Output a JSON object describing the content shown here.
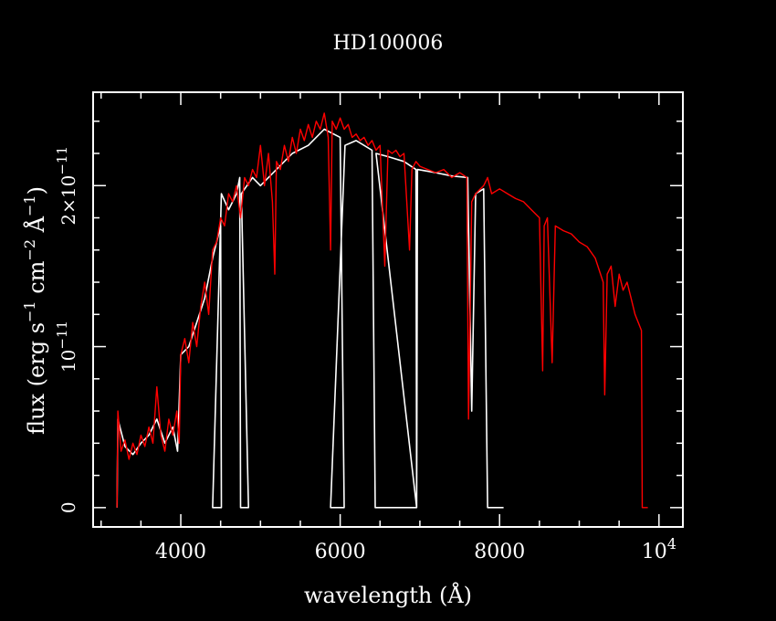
{
  "chart_data": {
    "type": "line",
    "title": "HD100006",
    "xlabel": "wavelength (Å)",
    "ylabel": {
      "prefix": "flux (erg s",
      "s_exp": "−1",
      "mid": " cm",
      "cm_exp": "−2",
      "ang": " Å",
      "ang_exp": "−1",
      "suffix": ")"
    },
    "xlim": [
      2900,
      10300
    ],
    "ylim": [
      -1.2e-12,
      2.58e-11
    ],
    "x_ticks": [
      {
        "value": 4000,
        "label": "4000"
      },
      {
        "value": 6000,
        "label": "6000"
      },
      {
        "value": 8000,
        "label": "8000"
      },
      {
        "value": 10000,
        "label": "10",
        "exp": "4"
      }
    ],
    "y_ticks": [
      {
        "value": 0,
        "label": "0"
      },
      {
        "value": 1e-11,
        "label": "10",
        "exp": "−11"
      },
      {
        "value": 2e-11,
        "label": "2×10",
        "exp": "−11"
      }
    ],
    "series": [
      {
        "color": "#ffffff",
        "kind": "spectrum-with-gaps",
        "points": [
          [
            3200,
            0.0
          ],
          [
            3210,
            5.5e-12
          ],
          [
            3300,
            3.8e-12
          ],
          [
            3400,
            3.3e-12
          ],
          [
            3500,
            4e-12
          ],
          [
            3600,
            4.5e-12
          ],
          [
            3700,
            5.5e-12
          ],
          [
            3800,
            4e-12
          ],
          [
            3900,
            5e-12
          ],
          [
            3960,
            3.5e-12
          ],
          [
            4000,
            9.5e-12
          ],
          [
            4100,
            1e-11
          ],
          [
            4200,
            1.15e-11
          ],
          [
            4300,
            1.3e-11
          ],
          [
            4400,
            1.55e-11
          ],
          [
            4500,
            1.75e-11
          ],
          [
            4510,
            0.0
          ],
          [
            4400,
            0.0
          ],
          [
            4510,
            1.95e-11
          ],
          [
            4600,
            1.85e-11
          ],
          [
            4700,
            1.95e-11
          ],
          [
            4740,
            2.05e-11
          ],
          [
            4750,
            0.0
          ],
          [
            4850,
            0.0
          ],
          [
            4760,
            1.95e-11
          ],
          [
            4900,
            2.05e-11
          ],
          [
            5000,
            2e-11
          ],
          [
            5200,
            2.1e-11
          ],
          [
            5400,
            2.2e-11
          ],
          [
            5600,
            2.25e-11
          ],
          [
            5800,
            2.35e-11
          ],
          [
            6000,
            2.3e-11
          ],
          [
            6050,
            0.0
          ],
          [
            5880,
            0.0
          ],
          [
            6060,
            2.25e-11
          ],
          [
            6200,
            2.28e-11
          ],
          [
            6400,
            2.22e-11
          ],
          [
            6440,
            0.0
          ],
          [
            6960,
            0.0
          ],
          [
            6450,
            2.2e-11
          ],
          [
            6600,
            2.18e-11
          ],
          [
            6800,
            2.15e-11
          ],
          [
            6950,
            2.1e-11
          ],
          [
            6960,
            0.0
          ],
          [
            6970,
            2.1e-11
          ],
          [
            7200,
            2.08e-11
          ],
          [
            7400,
            2.06e-11
          ],
          [
            7600,
            2.05e-11
          ],
          [
            7650,
            6e-12
          ],
          [
            7700,
            1.95e-11
          ],
          [
            7800,
            1.98e-11
          ],
          [
            7850,
            0.0
          ],
          [
            7900,
            0.0
          ],
          [
            7950,
            0.0
          ],
          [
            8050,
            0.0
          ]
        ]
      },
      {
        "color": "#ff0000",
        "kind": "spectrum",
        "points": [
          [
            3200,
            0.0
          ],
          [
            3210,
            6e-12
          ],
          [
            3250,
            3.5e-12
          ],
          [
            3300,
            4.2e-12
          ],
          [
            3350,
            3e-12
          ],
          [
            3400,
            4e-12
          ],
          [
            3450,
            3.3e-12
          ],
          [
            3500,
            4.5e-12
          ],
          [
            3550,
            3.8e-12
          ],
          [
            3600,
            5e-12
          ],
          [
            3650,
            4e-12
          ],
          [
            3700,
            7.5e-12
          ],
          [
            3750,
            4.5e-12
          ],
          [
            3800,
            3.5e-12
          ],
          [
            3850,
            5.5e-12
          ],
          [
            3900,
            4.5e-12
          ],
          [
            3950,
            6e-12
          ],
          [
            3980,
            4e-12
          ],
          [
            4000,
            9.5e-12
          ],
          [
            4050,
            1.05e-11
          ],
          [
            4100,
            9e-12
          ],
          [
            4150,
            1.15e-11
          ],
          [
            4200,
            1e-11
          ],
          [
            4250,
            1.25e-11
          ],
          [
            4300,
            1.4e-11
          ],
          [
            4350,
            1.2e-11
          ],
          [
            4400,
            1.6e-11
          ],
          [
            4450,
            1.65e-11
          ],
          [
            4500,
            1.8e-11
          ],
          [
            4550,
            1.75e-11
          ],
          [
            4600,
            1.95e-11
          ],
          [
            4650,
            1.9e-11
          ],
          [
            4700,
            2e-11
          ],
          [
            4750,
            1.8e-11
          ],
          [
            4800,
            2.05e-11
          ],
          [
            4850,
            2e-11
          ],
          [
            4900,
            2.1e-11
          ],
          [
            4950,
            2.05e-11
          ],
          [
            5000,
            2.25e-11
          ],
          [
            5050,
            2e-11
          ],
          [
            5100,
            2.2e-11
          ],
          [
            5150,
            1.9e-11
          ],
          [
            5180,
            1.45e-11
          ],
          [
            5200,
            2.15e-11
          ],
          [
            5250,
            2.1e-11
          ],
          [
            5300,
            2.25e-11
          ],
          [
            5350,
            2.15e-11
          ],
          [
            5400,
            2.3e-11
          ],
          [
            5450,
            2.2e-11
          ],
          [
            5500,
            2.35e-11
          ],
          [
            5550,
            2.28e-11
          ],
          [
            5600,
            2.38e-11
          ],
          [
            5650,
            2.3e-11
          ],
          [
            5700,
            2.4e-11
          ],
          [
            5750,
            2.35e-11
          ],
          [
            5800,
            2.45e-11
          ],
          [
            5850,
            2.3e-11
          ],
          [
            5880,
            1.6e-11
          ],
          [
            5900,
            2.4e-11
          ],
          [
            5950,
            2.35e-11
          ],
          [
            6000,
            2.42e-11
          ],
          [
            6050,
            2.35e-11
          ],
          [
            6100,
            2.38e-11
          ],
          [
            6150,
            2.3e-11
          ],
          [
            6200,
            2.32e-11
          ],
          [
            6250,
            2.28e-11
          ],
          [
            6300,
            2.3e-11
          ],
          [
            6350,
            2.25e-11
          ],
          [
            6400,
            2.28e-11
          ],
          [
            6450,
            2.22e-11
          ],
          [
            6500,
            2.25e-11
          ],
          [
            6560,
            1.5e-11
          ],
          [
            6600,
            2.22e-11
          ],
          [
            6650,
            2.2e-11
          ],
          [
            6700,
            2.22e-11
          ],
          [
            6750,
            2.18e-11
          ],
          [
            6800,
            2.2e-11
          ],
          [
            6870,
            1.6e-11
          ],
          [
            6900,
            2.1e-11
          ],
          [
            6950,
            2.15e-11
          ],
          [
            7000,
            2.12e-11
          ],
          [
            7100,
            2.1e-11
          ],
          [
            7200,
            2.08e-11
          ],
          [
            7300,
            2.1e-11
          ],
          [
            7400,
            2.05e-11
          ],
          [
            7500,
            2.08e-11
          ],
          [
            7590,
            2.05e-11
          ],
          [
            7610,
            5.5e-12
          ],
          [
            7650,
            1.9e-11
          ],
          [
            7700,
            1.95e-11
          ],
          [
            7800,
            2e-11
          ],
          [
            7850,
            2.05e-11
          ],
          [
            7900,
            1.95e-11
          ],
          [
            8000,
            1.98e-11
          ],
          [
            8100,
            1.95e-11
          ],
          [
            8200,
            1.92e-11
          ],
          [
            8300,
            1.9e-11
          ],
          [
            8400,
            1.85e-11
          ],
          [
            8500,
            1.8e-11
          ],
          [
            8540,
            8.5e-12
          ],
          [
            8560,
            1.75e-11
          ],
          [
            8600,
            1.8e-11
          ],
          [
            8660,
            9e-12
          ],
          [
            8700,
            1.75e-11
          ],
          [
            8800,
            1.72e-11
          ],
          [
            8900,
            1.7e-11
          ],
          [
            9000,
            1.65e-11
          ],
          [
            9100,
            1.62e-11
          ],
          [
            9200,
            1.55e-11
          ],
          [
            9300,
            1.4e-11
          ],
          [
            9320,
            7e-12
          ],
          [
            9350,
            1.45e-11
          ],
          [
            9400,
            1.5e-11
          ],
          [
            9450,
            1.25e-11
          ],
          [
            9500,
            1.45e-11
          ],
          [
            9550,
            1.35e-11
          ],
          [
            9600,
            1.4e-11
          ],
          [
            9650,
            1.3e-11
          ],
          [
            9700,
            1.2e-11
          ],
          [
            9780,
            1.1e-11
          ],
          [
            9790,
            0.0
          ],
          [
            9860,
            0.0
          ]
        ]
      }
    ],
    "grid": false,
    "legend": "none"
  }
}
